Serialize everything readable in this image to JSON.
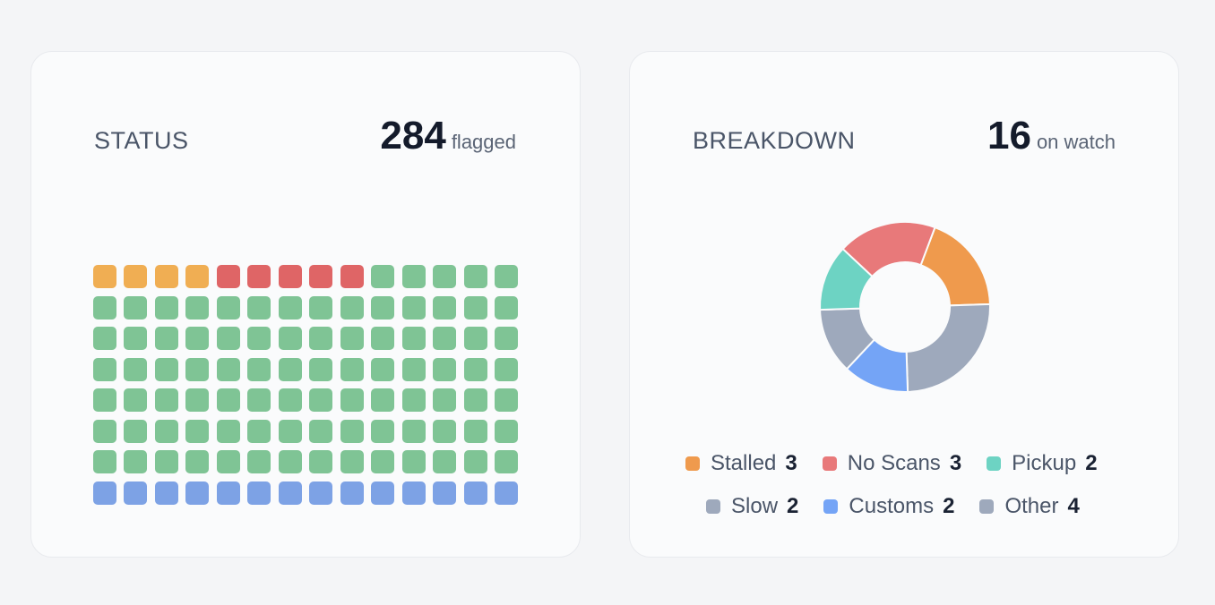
{
  "status": {
    "title": "STATUS",
    "value": "284",
    "unit": "flagged",
    "waffle": {
      "columns": 14,
      "rows": 8,
      "cells": [
        {
          "name": "orange",
          "color": "#f0ae53",
          "count": 4
        },
        {
          "name": "red",
          "color": "#df6566",
          "count": 5
        },
        {
          "name": "green",
          "color": "#7fc495",
          "count": 89
        },
        {
          "name": "blue",
          "color": "#7da2e5",
          "count": 14
        }
      ]
    }
  },
  "breakdown": {
    "title": "BREAKDOWN",
    "value": "16",
    "unit": "on watch",
    "chart_data": {
      "type": "pie",
      "title": "",
      "categories": [
        "Stalled",
        "No Scans",
        "Pickup",
        "Slow",
        "Customs",
        "Other"
      ],
      "values": [
        3,
        3,
        2,
        2,
        2,
        4
      ],
      "colors": [
        "#ef9a4d",
        "#e8797a",
        "#6dd3c3",
        "#9ea9bc",
        "#74a4f6",
        "#9ea9bc"
      ]
    },
    "legend": [
      {
        "label": "Stalled",
        "count": "3",
        "color": "#ef9a4d"
      },
      {
        "label": "No Scans",
        "count": "3",
        "color": "#e8797a"
      },
      {
        "label": "Pickup",
        "count": "2",
        "color": "#6dd3c3"
      },
      {
        "label": "Slow",
        "count": "2",
        "color": "#9ea9bc"
      },
      {
        "label": "Customs",
        "count": "2",
        "color": "#74a4f6"
      },
      {
        "label": "Other",
        "count": "4",
        "color": "#9ea9bc"
      }
    ]
  }
}
